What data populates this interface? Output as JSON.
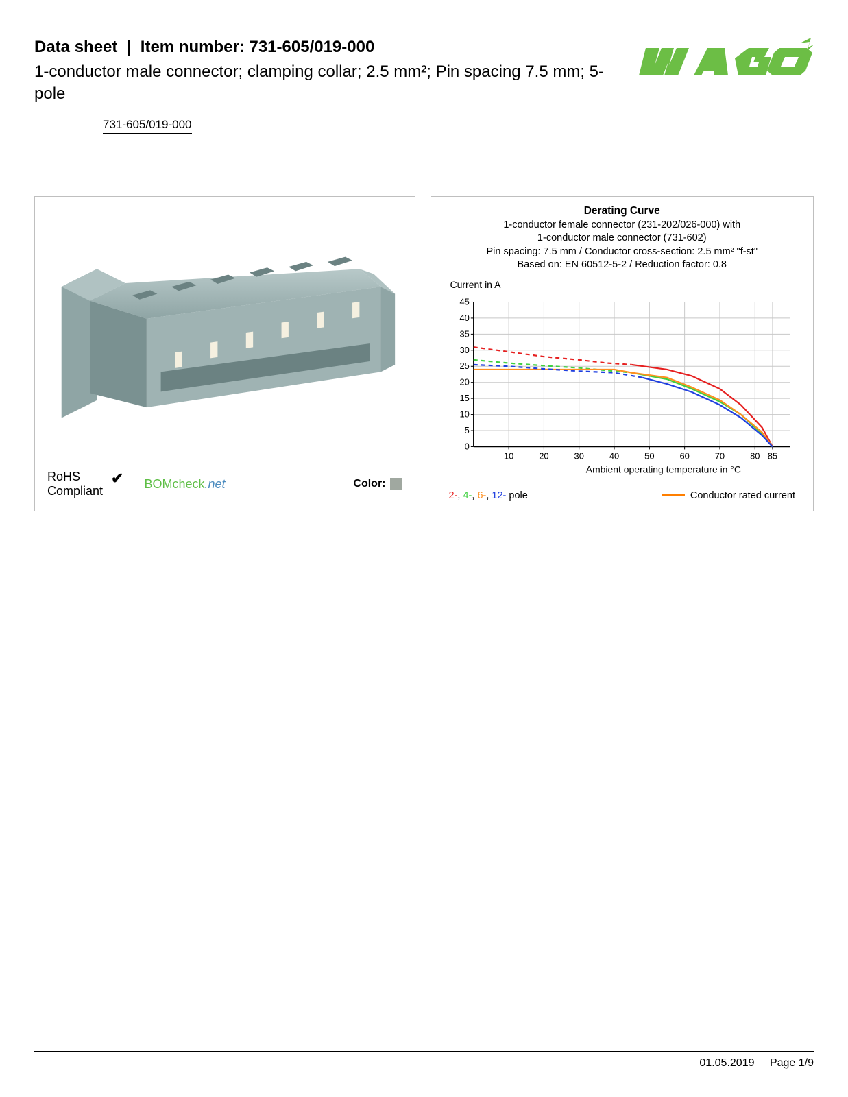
{
  "header": {
    "title_prefix": "Data sheet",
    "title_sep": "|",
    "title_label": "Item number:",
    "item_number": "731-605/019-000",
    "subtitle": "1-conductor male connector; clamping collar; 2.5 mm²; Pin spacing 7.5 mm; 5-pole",
    "item_link": "731-605/019-000",
    "logo_text": "WAGO",
    "logo_color": "#6cbe45"
  },
  "left_panel": {
    "rohs_line1": "RoHS",
    "rohs_line2": "Compliant",
    "check": "✔",
    "bomcheck_main": "BOMcheck",
    "bomcheck_suffix": ".net",
    "bomcheck_color_main": "#5fbf47",
    "bomcheck_color_suffix": "#4a8bbf",
    "color_label": "Color:",
    "color_swatch": "#a0a8a0",
    "connector_body_color": "#9fb3b3",
    "connector_shadow": "#7a9191",
    "connector_dark": "#6b8282",
    "pin_color": "#f5f0e0"
  },
  "chart": {
    "title": "Derating Curve",
    "sub1": "1-conductor female connector (231-202/026-000) with",
    "sub2": "1-conductor male connector (731-602)",
    "sub3": "Pin spacing: 7.5 mm / Conductor cross-section: 2.5 mm² \"f-st\"",
    "sub4": "Based on: EN 60512-5-2 / Reduction factor: 0.8",
    "y_label": "Current in A",
    "x_label": "Ambient operating temperature in °C",
    "y_ticks": [
      0,
      5,
      10,
      15,
      20,
      25,
      30,
      35,
      40,
      45
    ],
    "x_ticks": [
      10,
      20,
      30,
      40,
      50,
      60,
      70,
      80,
      85
    ],
    "xlim": [
      0,
      90
    ],
    "ylim": [
      0,
      45
    ],
    "grid_color": "#c8c8c8",
    "axis_color": "#000000",
    "series": {
      "s2": {
        "color": "#e62020",
        "label": "2-",
        "dash_break": 38,
        "pts": [
          [
            0,
            31
          ],
          [
            10,
            29.5
          ],
          [
            20,
            28
          ],
          [
            30,
            27
          ],
          [
            38,
            26
          ],
          [
            45,
            25.5
          ],
          [
            55,
            24
          ],
          [
            62,
            22
          ],
          [
            70,
            18
          ],
          [
            76,
            13
          ],
          [
            82,
            6
          ],
          [
            85,
            0
          ]
        ]
      },
      "s4": {
        "color": "#40d040",
        "label": "4-",
        "dash_break": 35,
        "pts": [
          [
            0,
            27
          ],
          [
            10,
            26
          ],
          [
            20,
            25.2
          ],
          [
            30,
            24.5
          ],
          [
            35,
            24
          ],
          [
            45,
            23
          ],
          [
            55,
            21
          ],
          [
            62,
            18
          ],
          [
            70,
            14
          ],
          [
            76,
            10
          ],
          [
            82,
            4
          ],
          [
            85,
            0
          ]
        ]
      },
      "s6": {
        "color": "#ff9020",
        "label": "6-",
        "dash_break": 0,
        "pts": [
          [
            0,
            24
          ],
          [
            10,
            24
          ],
          [
            20,
            24
          ],
          [
            30,
            24
          ],
          [
            40,
            24
          ],
          [
            45,
            23
          ],
          [
            55,
            21.5
          ],
          [
            62,
            18.5
          ],
          [
            70,
            14.5
          ],
          [
            76,
            10
          ],
          [
            82,
            4.5
          ],
          [
            85,
            0
          ]
        ]
      },
      "s12": {
        "color": "#2040e0",
        "label": "12-",
        "dash_break": 40,
        "pts": [
          [
            0,
            25.5
          ],
          [
            10,
            25
          ],
          [
            20,
            24.2
          ],
          [
            30,
            23.5
          ],
          [
            40,
            23
          ],
          [
            48,
            21.5
          ],
          [
            55,
            19.5
          ],
          [
            62,
            17
          ],
          [
            70,
            13
          ],
          [
            76,
            9
          ],
          [
            82,
            3.5
          ],
          [
            85,
            0
          ]
        ]
      }
    },
    "legend_left_suffix": " pole",
    "legend_right_label": "Conductor rated current",
    "legend_right_color": "#ff7f00",
    "title_fontsize": 15.5,
    "sub_fontsize": 14.5,
    "tick_fontsize": 13
  },
  "footer": {
    "date": "01.05.2019",
    "page": "Page 1/9"
  }
}
